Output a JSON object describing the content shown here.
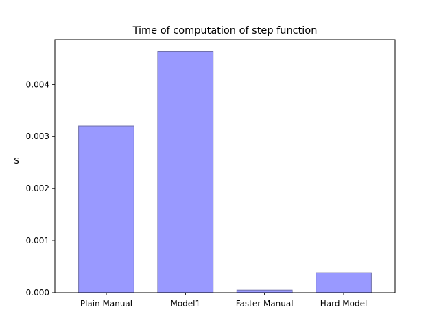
{
  "chart_data": {
    "type": "bar",
    "title": "Time of computation of step function",
    "xlabel": "",
    "ylabel": "S",
    "categories": [
      "Plain Manual",
      "Model1",
      "Faster Manual",
      "Hard Model"
    ],
    "values": [
      0.0032,
      0.00463,
      5e-05,
      0.00038
    ],
    "ylim": [
      0,
      0.00486
    ],
    "yticks": [
      0,
      0.001,
      0.002,
      0.003,
      0.004
    ],
    "ytick_labels": [
      "0.000",
      "0.001",
      "0.002",
      "0.003",
      "0.004"
    ],
    "grid": false,
    "legend": "none",
    "bar_color": "#9999ff",
    "bar_edge_color": "#6f6fa8"
  }
}
